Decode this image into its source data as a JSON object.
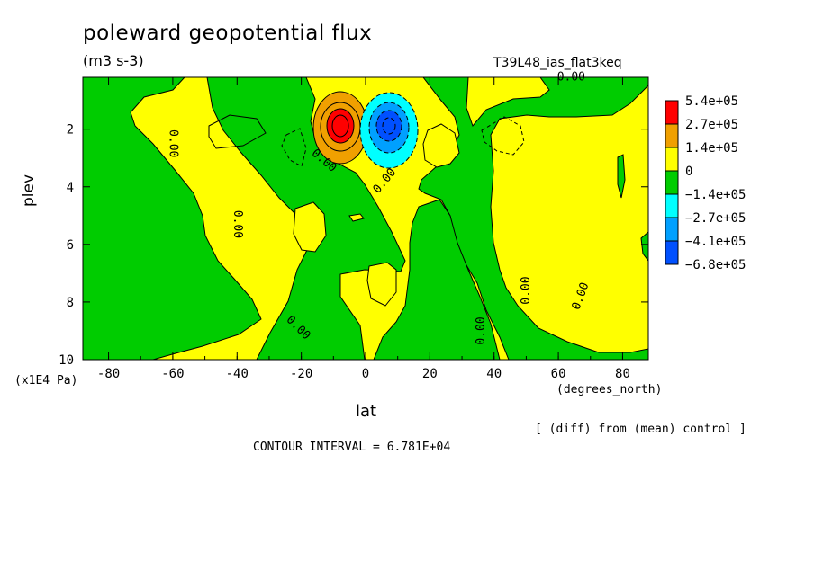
{
  "chart_data": {
    "type": "heatmap",
    "title": "poleward geopotential flux",
    "units": "(m3 s-3)",
    "run_id": "T39L48_ias_flat3keq",
    "xlabel": "lat",
    "ylabel": "plev",
    "x_units": "(degrees_north)",
    "y_units": "(x1E4 Pa)",
    "xlim": [
      -88,
      88
    ],
    "ylim": [
      10,
      0.2
    ],
    "x_ticks": [
      "-80",
      "-60",
      "-40",
      "-20",
      "0",
      "20",
      "40",
      "60",
      "80"
    ],
    "x_tick_values": [
      -80,
      -60,
      -40,
      -20,
      0,
      20,
      40,
      60,
      80
    ],
    "y_ticks": [
      "2",
      "4",
      "6",
      "8",
      "10"
    ],
    "y_tick_values": [
      2,
      4,
      6,
      8,
      10
    ],
    "legend": {
      "labels": [
        "5.4e+05",
        "2.7e+05",
        "1.4e+05",
        "0",
        "−1.4e+05",
        "−2.7e+05",
        "−4.1e+05",
        "−6.8e+05"
      ],
      "colors": [
        "#ff0000",
        "#f0a000",
        "#ffff00",
        "#00cc00",
        "#00ffff",
        "#00a0ff",
        "#0050ff"
      ]
    },
    "contour_labels": [
      {
        "text": "0.00",
        "x": 64,
        "y": 0.2,
        "angle": 0
      },
      {
        "text": "0.00",
        "x": -60,
        "y": 2.5,
        "angle": 90
      },
      {
        "text": "0.00",
        "x": -13,
        "y": 3.1,
        "angle": 40
      },
      {
        "text": "0.00",
        "x": 6,
        "y": 3.8,
        "angle": -50
      },
      {
        "text": "0.00",
        "x": -40,
        "y": 5.3,
        "angle": 90
      },
      {
        "text": "0.00",
        "x": 50,
        "y": 7.6,
        "angle": -90
      },
      {
        "text": "0.00",
        "x": 67,
        "y": 7.8,
        "angle": -70
      },
      {
        "text": "0.00",
        "x": -21,
        "y": 8.9,
        "angle": 45
      },
      {
        "text": "0.00",
        "x": 36,
        "y": 9.0,
        "angle": -90
      }
    ],
    "extrema": [
      {
        "lat": -7,
        "plev": 1.9,
        "value": 540000
      },
      {
        "lat": 7,
        "plev": 1.9,
        "value": -680000
      }
    ]
  },
  "footer": {
    "diff_note": "[ (diff) from (mean) control ]",
    "contour_interval": "CONTOUR INTERVAL = 6.781E+04"
  }
}
